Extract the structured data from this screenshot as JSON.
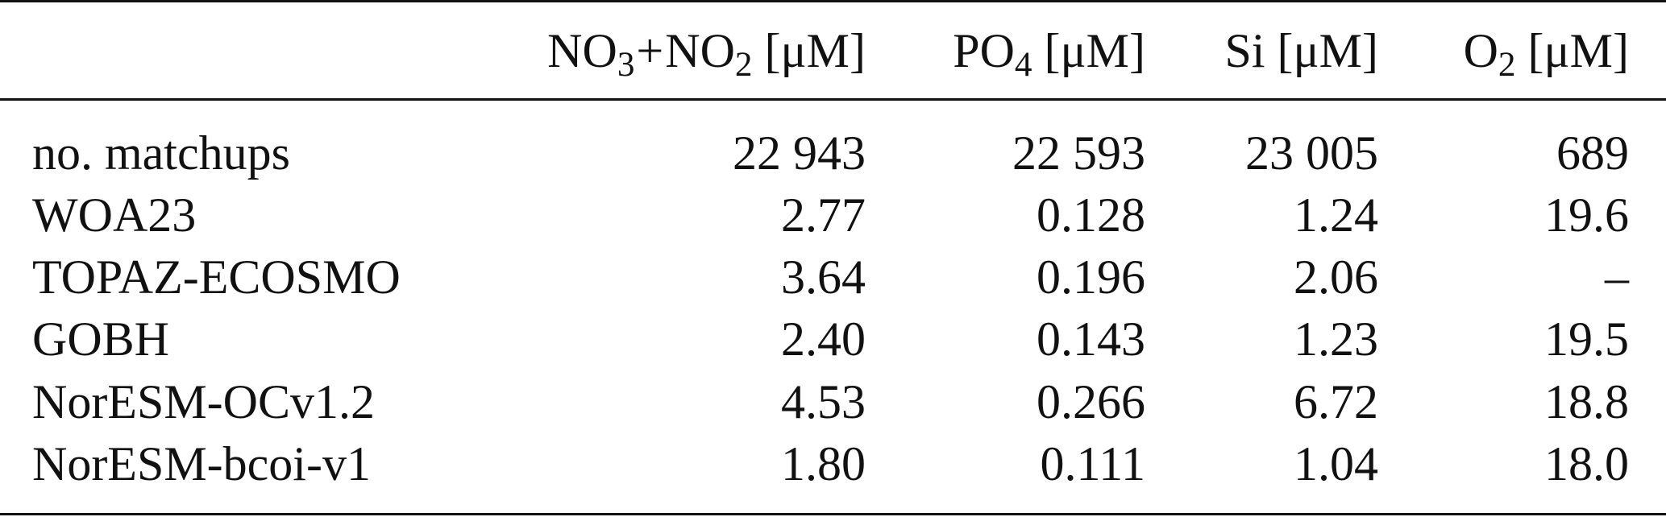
{
  "table": {
    "header": {
      "col1": {
        "a": "NO",
        "a_sub": "3",
        "plus": "+",
        "b": "NO",
        "b_sub": "2",
        "unit": " [μM]"
      },
      "col2": {
        "a": "PO",
        "a_sub": "4",
        "unit": " [μM]"
      },
      "col3": {
        "a": "Si [μM]"
      },
      "col4": {
        "a": "O",
        "a_sub": "2",
        "unit": " [μM]"
      }
    },
    "rows": [
      {
        "label": "no. matchups",
        "values": [
          "22 943",
          "22 593",
          "23 005",
          "689"
        ]
      },
      {
        "label": "WOA23",
        "values": [
          "2.77",
          "0.128",
          "1.24",
          "19.6"
        ]
      },
      {
        "label": "TOPAZ-ECOSMO",
        "values": [
          "3.64",
          "0.196",
          "2.06",
          "–"
        ]
      },
      {
        "label": "GOBH",
        "values": [
          "2.40",
          "0.143",
          "1.23",
          "19.5"
        ]
      },
      {
        "label": "NorESM-OCv1.2",
        "values": [
          "4.53",
          "0.266",
          "6.72",
          "18.8"
        ]
      },
      {
        "label": "NorESM-bcoi-v1",
        "values": [
          "1.80",
          "0.111",
          "1.04",
          "18.0"
        ]
      }
    ]
  }
}
